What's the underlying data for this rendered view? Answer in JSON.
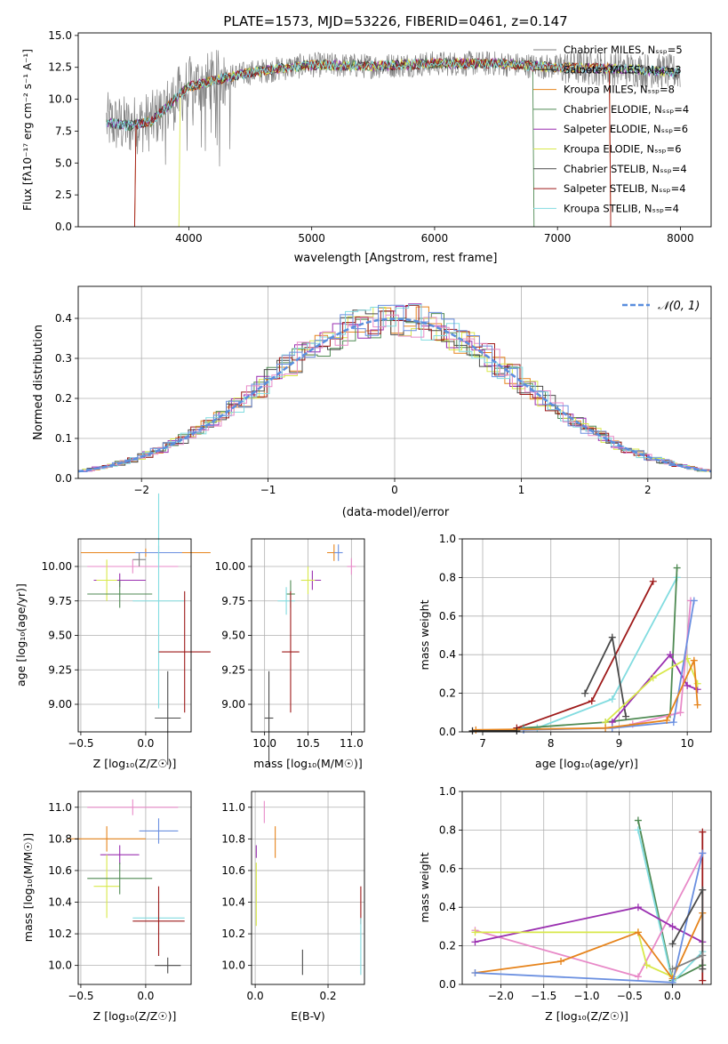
{
  "colors": [
    "#808080",
    "#2a2a2a",
    "#e6841c",
    "#4f8a53",
    "#9a2fb0",
    "#d8e84a",
    "#4a4a4a",
    "#9e1a1a",
    "#82dce0",
    "#e88ac8",
    "#6a8fe0"
  ],
  "chart_data": [
    {
      "type": "line",
      "title": "PLATE=1573, MJD=53226, FIBERID=0461, z=0.147",
      "xlabel": "wavelength [Angstrom, rest frame]",
      "ylabel": "Flux [fλ10⁻¹⁷ erg cm⁻² s⁻¹ A⁻¹]",
      "xlim": [
        3100,
        8250
      ],
      "ylim": [
        0,
        15.2
      ],
      "xticks": [
        "4000",
        "5000",
        "6000",
        "7000",
        "8000"
      ],
      "yticks": [
        "0.0",
        "2.5",
        "5.0",
        "7.5",
        "10.0",
        "12.5",
        "15.0"
      ],
      "legend": "top-right",
      "series": [
        {
          "name": "Chabrier MILES, N_SSP=5",
          "color": "#808080"
        },
        {
          "name": "Salpeter MILES, N_SSP=3",
          "color": "#2a2a2a"
        },
        {
          "name": "Kroupa MILES, N_SSP=8",
          "color": "#e6841c"
        },
        {
          "name": "Chabrier ELODIE, N_SSP=4",
          "color": "#4f8a53"
        },
        {
          "name": "Salpeter ELODIE, N_SSP=6",
          "color": "#9a2fb0"
        },
        {
          "name": "Kroupa ELODIE, N_SSP=6",
          "color": "#d8e84a"
        },
        {
          "name": "Chabrier STELIB, N_SSP=4",
          "color": "#4a4a4a"
        },
        {
          "name": "Salpeter STELIB, N_SSP=4",
          "color": "#9e1a1a"
        },
        {
          "name": "Kroupa STELIB, N_SSP=4",
          "color": "#82dce0"
        }
      ],
      "spectrum_shape": {
        "x": [
          3330,
          3500,
          3700,
          4000,
          4500,
          5000,
          5500,
          6000,
          6500,
          7000,
          7500,
          8000
        ],
        "y": [
          8.2,
          7.9,
          8.3,
          11.0,
          12.1,
          12.7,
          12.6,
          12.8,
          12.8,
          12.5,
          12.4,
          12.1
        ]
      }
    },
    {
      "type": "histogram",
      "xlabel": "(data-model)/error",
      "ylabel": "Normed distribution",
      "xlim": [
        -2.5,
        2.5
      ],
      "ylim": [
        0,
        0.48
      ],
      "xticks": [
        "−2",
        "−1",
        "0",
        "1",
        "2"
      ],
      "yticks": [
        "0.0",
        "0.1",
        "0.2",
        "0.3",
        "0.4"
      ],
      "legend_label": "𝒩(0, 1)",
      "legend": "top-right",
      "bin_width": 0.1,
      "dist_color": "#5a8ede"
    },
    {
      "type": "scatter",
      "xlabel": "Z [log₁₀(Z/Z☉)]",
      "ylabel": "age  [log₁₀(age/yr)]",
      "xlim": [
        -0.52,
        0.35
      ],
      "ylim": [
        8.8,
        10.2
      ],
      "xticks": [
        "−0.5",
        "0.0"
      ],
      "yticks": [
        "9.00",
        "9.25",
        "9.50",
        "9.75",
        "10.00"
      ],
      "points": [
        {
          "x": 0.0,
          "y": 10.1,
          "xerr": 0.5,
          "yerr": 0.03,
          "color": "#e6841c"
        },
        {
          "x": 0.1,
          "y": 10.1,
          "xerr": 0.18,
          "yerr": 0.05,
          "color": "#6a8fe0"
        },
        {
          "x": -0.1,
          "y": 10.0,
          "xerr": 0.35,
          "yerr": 0.05,
          "color": "#e88ac8"
        },
        {
          "x": -0.05,
          "y": 10.05,
          "xerr": 0.05,
          "yerr": 0.05,
          "color": "#808080"
        },
        {
          "x": -0.2,
          "y": 9.9,
          "xerr": 0.2,
          "yerr": 0.05,
          "color": "#9a2fb0"
        },
        {
          "x": -0.3,
          "y": 9.9,
          "xerr": 0.08,
          "yerr": 0.15,
          "color": "#d8e84a"
        },
        {
          "x": -0.2,
          "y": 9.8,
          "xerr": 0.25,
          "yerr": 0.1,
          "color": "#4f8a53"
        },
        {
          "x": 0.1,
          "y": 9.75,
          "xerr": 0.2,
          "yerr": 0.78,
          "color": "#82dce0"
        },
        {
          "x": 0.3,
          "y": 9.38,
          "xerr": 0.2,
          "yerr": 0.44,
          "color": "#9e1a1a"
        },
        {
          "x": 0.17,
          "y": 8.9,
          "xerr": 0.1,
          "yerr": 0.34,
          "color": "#4a4a4a"
        }
      ]
    },
    {
      "type": "scatter",
      "xlabel": "mass [log₁₀(M/M☉)]",
      "xlim": [
        9.85,
        11.15
      ],
      "ylim": [
        8.8,
        10.2
      ],
      "xticks": [
        "10.0",
        "10.5",
        "11.0"
      ],
      "yticks": [
        "9.00",
        "9.25",
        "9.50",
        "9.75",
        "10.00"
      ],
      "points": [
        {
          "x": 10.8,
          "y": 10.1,
          "xerr": 0.08,
          "yerr": 0.06,
          "color": "#e6841c"
        },
        {
          "x": 10.85,
          "y": 10.1,
          "xerr": 0.05,
          "yerr": 0.06,
          "color": "#6a8fe0"
        },
        {
          "x": 11.0,
          "y": 10.0,
          "xerr": 0.05,
          "yerr": 0.06,
          "color": "#e88ac8"
        },
        {
          "x": 10.55,
          "y": 9.9,
          "xerr": 0.1,
          "yerr": 0.07,
          "color": "#9a2fb0"
        },
        {
          "x": 10.5,
          "y": 9.9,
          "xerr": 0.08,
          "yerr": 0.1,
          "color": "#d8e84a"
        },
        {
          "x": 10.3,
          "y": 9.8,
          "xerr": 0.05,
          "yerr": 0.1,
          "color": "#4f8a53"
        },
        {
          "x": 10.25,
          "y": 9.75,
          "xerr": 0.1,
          "yerr": 0.1,
          "color": "#82dce0"
        },
        {
          "x": 10.3,
          "y": 9.38,
          "xerr": 0.1,
          "yerr": 0.44,
          "color": "#9e1a1a"
        },
        {
          "x": 10.05,
          "y": 8.9,
          "xerr": 0.05,
          "yerr": 0.34,
          "color": "#4a4a4a"
        }
      ]
    },
    {
      "type": "line",
      "xlabel": "age  [log₁₀(age/yr)]",
      "ylabel": "mass weight",
      "xlim": [
        6.7,
        10.35
      ],
      "ylim": [
        0,
        1
      ],
      "xticks": [
        "7",
        "8",
        "9",
        "10"
      ],
      "yticks": [
        "0.0",
        "0.2",
        "0.4",
        "0.6",
        "0.8",
        "1.0"
      ],
      "series": [
        {
          "color": "#9e1a1a",
          "x": [
            7.5,
            8.6,
            9.5
          ],
          "y": [
            0.02,
            0.16,
            0.78
          ]
        },
        {
          "color": "#82dce0",
          "x": [
            7.8,
            8.9,
            9.85
          ],
          "y": [
            0.02,
            0.17,
            0.8
          ]
        },
        {
          "color": "#4f8a53",
          "x": [
            7.6,
            8.8,
            9.75,
            9.85
          ],
          "y": [
            0.02,
            0.05,
            0.09,
            0.85
          ]
        },
        {
          "color": "#4a4a4a",
          "x": [
            8.5,
            8.9,
            9.1
          ],
          "y": [
            0.2,
            0.49,
            0.08
          ]
        },
        {
          "color": "#9a2fb0",
          "x": [
            8.9,
            9.75,
            10.0,
            10.15
          ],
          "y": [
            0.05,
            0.4,
            0.24,
            0.22
          ]
        },
        {
          "color": "#d8e84a",
          "x": [
            8.8,
            9.5,
            10.0,
            10.15
          ],
          "y": [
            0.05,
            0.28,
            0.38,
            0.25
          ]
        },
        {
          "color": "#e88ac8",
          "x": [
            9.2,
            9.9,
            10.05
          ],
          "y": [
            0.04,
            0.1,
            0.68
          ]
        },
        {
          "color": "#6a8fe0",
          "x": [
            7.6,
            8.9,
            9.8,
            10.1
          ],
          "y": [
            0.01,
            0.02,
            0.05,
            0.68
          ]
        },
        {
          "color": "#e6841c",
          "x": [
            6.9,
            8.8,
            9.7,
            10.1,
            10.15
          ],
          "y": [
            0.01,
            0.02,
            0.06,
            0.37,
            0.14
          ]
        },
        {
          "color": "#2a2a2a",
          "x": [
            6.85,
            7.5
          ],
          "y": [
            0.005,
            0.005
          ]
        }
      ]
    },
    {
      "type": "scatter",
      "xlabel": "Z [log₁₀(Z/Z☉)]",
      "ylabel": "mass [log₁₀(M/M☉)]",
      "xlim": [
        -0.52,
        0.35
      ],
      "ylim": [
        9.88,
        11.1
      ],
      "xticks": [
        "−0.5",
        "0.0"
      ],
      "yticks": [
        "10.0",
        "10.2",
        "10.4",
        "10.6",
        "10.8",
        "11.0"
      ],
      "points": [
        {
          "x": -0.1,
          "y": 11.0,
          "xerr": 0.35,
          "yerr": 0.05,
          "color": "#e88ac8"
        },
        {
          "x": 0.1,
          "y": 10.85,
          "xerr": 0.15,
          "yerr": 0.08,
          "color": "#6a8fe0"
        },
        {
          "x": -0.3,
          "y": 10.8,
          "xerr": 0.3,
          "yerr": 0.08,
          "color": "#e6841c"
        },
        {
          "x": -0.2,
          "y": 10.7,
          "xerr": 0.15,
          "yerr": 0.06,
          "color": "#9a2fb0"
        },
        {
          "x": -0.3,
          "y": 10.5,
          "xerr": 0.1,
          "yerr": 0.2,
          "color": "#d8e84a"
        },
        {
          "x": -0.2,
          "y": 10.55,
          "xerr": 0.25,
          "yerr": 0.1,
          "color": "#4f8a53"
        },
        {
          "x": 0.1,
          "y": 10.3,
          "xerr": 0.2,
          "yerr": 0.1,
          "color": "#82dce0"
        },
        {
          "x": 0.1,
          "y": 10.28,
          "xerr": 0.2,
          "yerr": 0.22,
          "color": "#9e1a1a"
        },
        {
          "x": 0.17,
          "y": 10.0,
          "xerr": 0.1,
          "yerr": 0.05,
          "color": "#4a4a4a"
        }
      ]
    },
    {
      "type": "scatter",
      "xlabel": "E(B-V)",
      "xlim": [
        -0.01,
        0.3
      ],
      "ylim": [
        9.88,
        11.1
      ],
      "xticks": [
        "0.0",
        "0.2"
      ],
      "yticks": [
        "10.0",
        "10.2",
        "10.4",
        "10.6",
        "10.8",
        "11.0"
      ],
      "points": [
        {
          "x": 0.025,
          "y": 10.97,
          "xerr": 0,
          "yerr": 0.07,
          "color": "#e88ac8"
        },
        {
          "x": 0.055,
          "y": 10.78,
          "xerr": 0,
          "yerr": 0.1,
          "color": "#e6841c"
        },
        {
          "x": 0.003,
          "y": 10.72,
          "xerr": 0,
          "yerr": 0.04,
          "color": "#9a2fb0"
        },
        {
          "x": 0.003,
          "y": 10.45,
          "xerr": 0,
          "yerr": 0.2,
          "color": "#d8e84a"
        },
        {
          "x": 0.13,
          "y": 10.02,
          "xerr": 0,
          "yerr": 0.08,
          "color": "#4a4a4a"
        },
        {
          "x": 0.29,
          "y": 10.38,
          "xerr": 0,
          "yerr": 0.12,
          "color": "#9e1a1a"
        },
        {
          "x": 0.29,
          "y": 10.12,
          "xerr": 0,
          "yerr": 0.18,
          "color": "#82dce0"
        }
      ]
    },
    {
      "type": "line",
      "xlabel": "Z [log₁₀(Z/Z☉)]",
      "ylabel": "mass weight",
      "xlim": [
        -2.45,
        0.45
      ],
      "ylim": [
        0,
        1
      ],
      "xticks": [
        "−2.0",
        "−1.5",
        "−1.0",
        "−0.5",
        "0.0"
      ],
      "yticks": [
        "0.0",
        "0.2",
        "0.4",
        "0.6",
        "0.8",
        "1.0"
      ],
      "series": [
        {
          "color": "#4f8a53",
          "x": [
            -0.4,
            0.0,
            0.35
          ],
          "y": [
            0.85,
            0.02,
            0.1
          ]
        },
        {
          "color": "#82dce0",
          "x": [
            -0.4,
            0.0,
            0.35
          ],
          "y": [
            0.8,
            0.01,
            0.17
          ]
        },
        {
          "color": "#9e1a1a",
          "x": [
            0.35,
            0.35
          ],
          "y": [
            0.79,
            0.02
          ]
        },
        {
          "color": "#e88ac8",
          "x": [
            -2.3,
            -0.4,
            0.35
          ],
          "y": [
            0.28,
            0.04,
            0.68
          ]
        },
        {
          "color": "#9a2fb0",
          "x": [
            -2.3,
            -0.4,
            0.0,
            0.35
          ],
          "y": [
            0.22,
            0.4,
            0.3,
            0.22
          ]
        },
        {
          "color": "#d8e84a",
          "x": [
            -2.3,
            -0.4,
            -0.3,
            0.0
          ],
          "y": [
            0.27,
            0.27,
            0.1,
            0.04
          ]
        },
        {
          "color": "#e6841c",
          "x": [
            -2.3,
            -1.3,
            -0.4,
            0.0,
            0.35
          ],
          "y": [
            0.06,
            0.12,
            0.27,
            0.03,
            0.37
          ]
        },
        {
          "color": "#6a8fe0",
          "x": [
            -2.3,
            0.0,
            0.35
          ],
          "y": [
            0.06,
            0.01,
            0.68
          ]
        },
        {
          "color": "#4a4a4a",
          "x": [
            0.0,
            0.35,
            0.35
          ],
          "y": [
            0.21,
            0.49,
            0.08
          ]
        },
        {
          "color": "#808080",
          "x": [
            0.0,
            0.35
          ],
          "y": [
            0.08,
            0.15
          ]
        }
      ]
    }
  ]
}
